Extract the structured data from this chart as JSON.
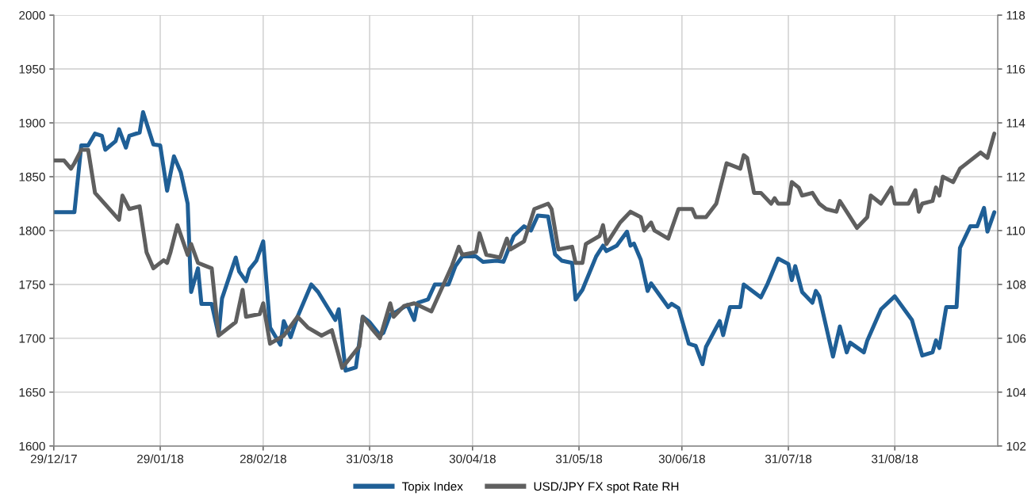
{
  "chart_data": {
    "type": "line",
    "xlim": [
      "2017-12-29",
      "2018-09-30"
    ],
    "xticks": [
      {
        "value": "2017-12-29",
        "label": "29/12/17"
      },
      {
        "value": "2018-01-29",
        "label": "29/01/18"
      },
      {
        "value": "2018-02-28",
        "label": "28/02/18"
      },
      {
        "value": "2018-03-31",
        "label": "31/03/18"
      },
      {
        "value": "2018-04-30",
        "label": "30/04/18"
      },
      {
        "value": "2018-05-31",
        "label": "31/05/18"
      },
      {
        "value": "2018-06-30",
        "label": "30/06/18"
      },
      {
        "value": "2018-07-31",
        "label": "31/07/18"
      },
      {
        "value": "2018-08-31",
        "label": "31/08/18"
      }
    ],
    "ylim": [
      1600,
      2000
    ],
    "yticks": [
      1600,
      1650,
      1700,
      1750,
      1800,
      1850,
      1900,
      1950,
      2000
    ],
    "y2lim": [
      102,
      118
    ],
    "y2ticks": [
      102,
      104,
      106,
      108,
      110,
      112,
      114,
      116,
      118
    ],
    "grid": true,
    "legend": "bottom",
    "marker": "none",
    "line_style": "solid",
    "series": [
      {
        "name": "Topix Index",
        "color": "#1f5f96",
        "x": [
          "2017-12-29",
          "2018-01-04",
          "2018-01-06",
          "2018-01-08",
          "2018-01-10",
          "2018-01-12",
          "2018-01-13",
          "2018-01-16",
          "2018-01-17",
          "2018-01-19",
          "2018-01-20",
          "2018-01-23",
          "2018-01-24",
          "2018-01-27",
          "2018-01-29",
          "2018-01-31",
          "2018-02-02",
          "2018-02-04",
          "2018-02-06",
          "2018-02-07",
          "2018-02-09",
          "2018-02-10",
          "2018-02-13",
          "2018-02-15",
          "2018-02-16",
          "2018-02-20",
          "2018-02-21",
          "2018-02-23",
          "2018-02-24",
          "2018-02-26",
          "2018-02-28",
          "2018-03-02",
          "2018-03-05",
          "2018-03-06",
          "2018-03-08",
          "2018-03-10",
          "2018-03-14",
          "2018-03-16",
          "2018-03-21",
          "2018-03-22",
          "2018-03-24",
          "2018-03-27",
          "2018-03-29",
          "2018-03-31",
          "2018-04-03",
          "2018-04-04",
          "2018-04-06",
          "2018-04-08",
          "2018-04-11",
          "2018-04-13",
          "2018-04-14",
          "2018-04-17",
          "2018-04-19",
          "2018-04-23",
          "2018-04-25",
          "2018-04-27",
          "2018-05-01",
          "2018-05-03",
          "2018-05-07",
          "2018-05-09",
          "2018-05-12",
          "2018-05-15",
          "2018-05-17",
          "2018-05-19",
          "2018-05-22",
          "2018-05-24",
          "2018-05-26",
          "2018-05-29",
          "2018-05-30",
          "2018-06-01",
          "2018-06-05",
          "2018-06-07",
          "2018-06-08",
          "2018-06-11",
          "2018-06-14",
          "2018-06-15",
          "2018-06-16",
          "2018-06-18",
          "2018-06-20",
          "2018-06-21",
          "2018-06-26",
          "2018-06-27",
          "2018-06-29",
          "2018-07-02",
          "2018-07-03",
          "2018-07-04",
          "2018-07-06",
          "2018-07-07",
          "2018-07-11",
          "2018-07-12",
          "2018-07-14",
          "2018-07-17",
          "2018-07-18",
          "2018-07-23",
          "2018-07-25",
          "2018-07-28",
          "2018-07-31",
          "2018-08-01",
          "2018-08-02",
          "2018-08-04",
          "2018-08-07",
          "2018-08-08",
          "2018-08-09",
          "2018-08-13",
          "2018-08-15",
          "2018-08-17",
          "2018-08-18",
          "2018-08-22",
          "2018-08-23",
          "2018-08-27",
          "2018-08-31",
          "2018-09-05",
          "2018-09-08",
          "2018-09-11",
          "2018-09-12",
          "2018-09-13",
          "2018-09-15",
          "2018-09-18",
          "2018-09-19",
          "2018-09-22",
          "2018-09-24",
          "2018-09-26",
          "2018-09-27",
          "2018-09-29"
        ],
        "values": [
          1817,
          1817,
          1879,
          1879,
          1890,
          1888,
          1875,
          1883,
          1894,
          1877,
          1888,
          1891,
          1910,
          1880,
          1879,
          1837,
          1869,
          1854,
          1825,
          1743,
          1765,
          1732,
          1732,
          1703,
          1737,
          1775,
          1762,
          1753,
          1764,
          1772,
          1790,
          1710,
          1694,
          1716,
          1701,
          1720,
          1750,
          1743,
          1717,
          1727,
          1670,
          1673,
          1720,
          1715,
          1703,
          1705,
          1722,
          1725,
          1731,
          1717,
          1733,
          1736,
          1750,
          1750,
          1767,
          1776,
          1776,
          1771,
          1772,
          1771,
          1795,
          1804,
          1800,
          1814,
          1813,
          1778,
          1772,
          1770,
          1736,
          1745,
          1776,
          1786,
          1781,
          1786,
          1799,
          1786,
          1788,
          1773,
          1744,
          1751,
          1729,
          1732,
          1728,
          1695,
          1694,
          1693,
          1676,
          1692,
          1716,
          1703,
          1729,
          1729,
          1750,
          1738,
          1751,
          1774,
          1769,
          1754,
          1767,
          1743,
          1733,
          1744,
          1739,
          1683,
          1711,
          1687,
          1696,
          1687,
          1698,
          1727,
          1739,
          1717,
          1684,
          1687,
          1698,
          1691,
          1729,
          1729,
          1784,
          1804,
          1804,
          1821,
          1799,
          1817
        ]
      },
      {
        "name": "USD/JPY FX spot Rate RH",
        "color": "#5f5f5f",
        "axis": "y2",
        "x": [
          "2017-12-29",
          "2018-01-01",
          "2018-01-03",
          "2018-01-04",
          "2018-01-06",
          "2018-01-08",
          "2018-01-10",
          "2018-01-17",
          "2018-01-18",
          "2018-01-20",
          "2018-01-23",
          "2018-01-25",
          "2018-01-27",
          "2018-01-30",
          "2018-01-31",
          "2018-02-01",
          "2018-02-03",
          "2018-02-06",
          "2018-02-07",
          "2018-02-09",
          "2018-02-13",
          "2018-02-15",
          "2018-02-20",
          "2018-02-22",
          "2018-02-23",
          "2018-02-27",
          "2018-02-28",
          "2018-03-02",
          "2018-03-06",
          "2018-03-10",
          "2018-03-13",
          "2018-03-17",
          "2018-03-20",
          "2018-03-23",
          "2018-03-28",
          "2018-03-29",
          "2018-04-01",
          "2018-04-03",
          "2018-04-06",
          "2018-04-07",
          "2018-04-10",
          "2018-04-13",
          "2018-04-18",
          "2018-04-24",
          "2018-04-26",
          "2018-04-27",
          "2018-05-01",
          "2018-05-02",
          "2018-05-04",
          "2018-05-08",
          "2018-05-10",
          "2018-05-11",
          "2018-05-15",
          "2018-05-18",
          "2018-05-22",
          "2018-05-23",
          "2018-05-25",
          "2018-05-29",
          "2018-05-30",
          "2018-06-01",
          "2018-06-02",
          "2018-06-06",
          "2018-06-07",
          "2018-06-08",
          "2018-06-12",
          "2018-06-15",
          "2018-06-18",
          "2018-06-19",
          "2018-06-21",
          "2018-06-22",
          "2018-06-26",
          "2018-06-29",
          "2018-07-02",
          "2018-07-03",
          "2018-07-04",
          "2018-07-06",
          "2018-07-07",
          "2018-07-10",
          "2018-07-13",
          "2018-07-17",
          "2018-07-18",
          "2018-07-19",
          "2018-07-21",
          "2018-07-23",
          "2018-07-26",
          "2018-07-27",
          "2018-07-28",
          "2018-07-31",
          "2018-08-01",
          "2018-08-03",
          "2018-08-04",
          "2018-08-07",
          "2018-08-09",
          "2018-08-11",
          "2018-08-14",
          "2018-08-15",
          "2018-08-17",
          "2018-08-20",
          "2018-08-23",
          "2018-08-24",
          "2018-08-27",
          "2018-08-30",
          "2018-08-31",
          "2018-09-04",
          "2018-09-06",
          "2018-09-07",
          "2018-09-08",
          "2018-09-11",
          "2018-09-12",
          "2018-09-13",
          "2018-09-14",
          "2018-09-17",
          "2018-09-19",
          "2018-09-20",
          "2018-09-22",
          "2018-09-25",
          "2018-09-27",
          "2018-09-29"
        ],
        "values": [
          112.6,
          112.6,
          112.3,
          112.5,
          113.0,
          113.0,
          111.4,
          110.4,
          111.3,
          110.8,
          110.9,
          109.2,
          108.6,
          108.9,
          108.8,
          109.2,
          110.2,
          109.1,
          109.5,
          108.8,
          108.6,
          106.1,
          106.6,
          107.8,
          106.8,
          106.9,
          107.3,
          105.8,
          106.1,
          106.8,
          106.4,
          106.1,
          106.3,
          104.9,
          105.7,
          106.8,
          106.3,
          106.0,
          107.3,
          106.8,
          107.2,
          107.3,
          107.0,
          108.7,
          109.4,
          109.1,
          109.2,
          109.9,
          109.1,
          109.0,
          109.7,
          109.3,
          109.6,
          110.8,
          111.0,
          110.8,
          109.3,
          109.4,
          108.8,
          108.8,
          109.5,
          109.8,
          110.2,
          109.5,
          110.3,
          110.7,
          110.5,
          110.0,
          110.3,
          110.0,
          109.7,
          110.8,
          110.8,
          110.8,
          110.5,
          110.5,
          110.5,
          111.0,
          112.5,
          112.3,
          112.8,
          112.7,
          111.4,
          111.4,
          111.0,
          111.2,
          111.0,
          111.0,
          111.8,
          111.6,
          111.3,
          111.4,
          111.0,
          110.8,
          110.7,
          111.1,
          110.7,
          110.1,
          110.5,
          111.3,
          111.0,
          111.6,
          111.0,
          111.0,
          111.5,
          110.7,
          111.0,
          111.1,
          111.6,
          111.3,
          112.0,
          111.8,
          112.3,
          112.4,
          112.6,
          112.9,
          112.7,
          113.6
        ]
      }
    ]
  }
}
